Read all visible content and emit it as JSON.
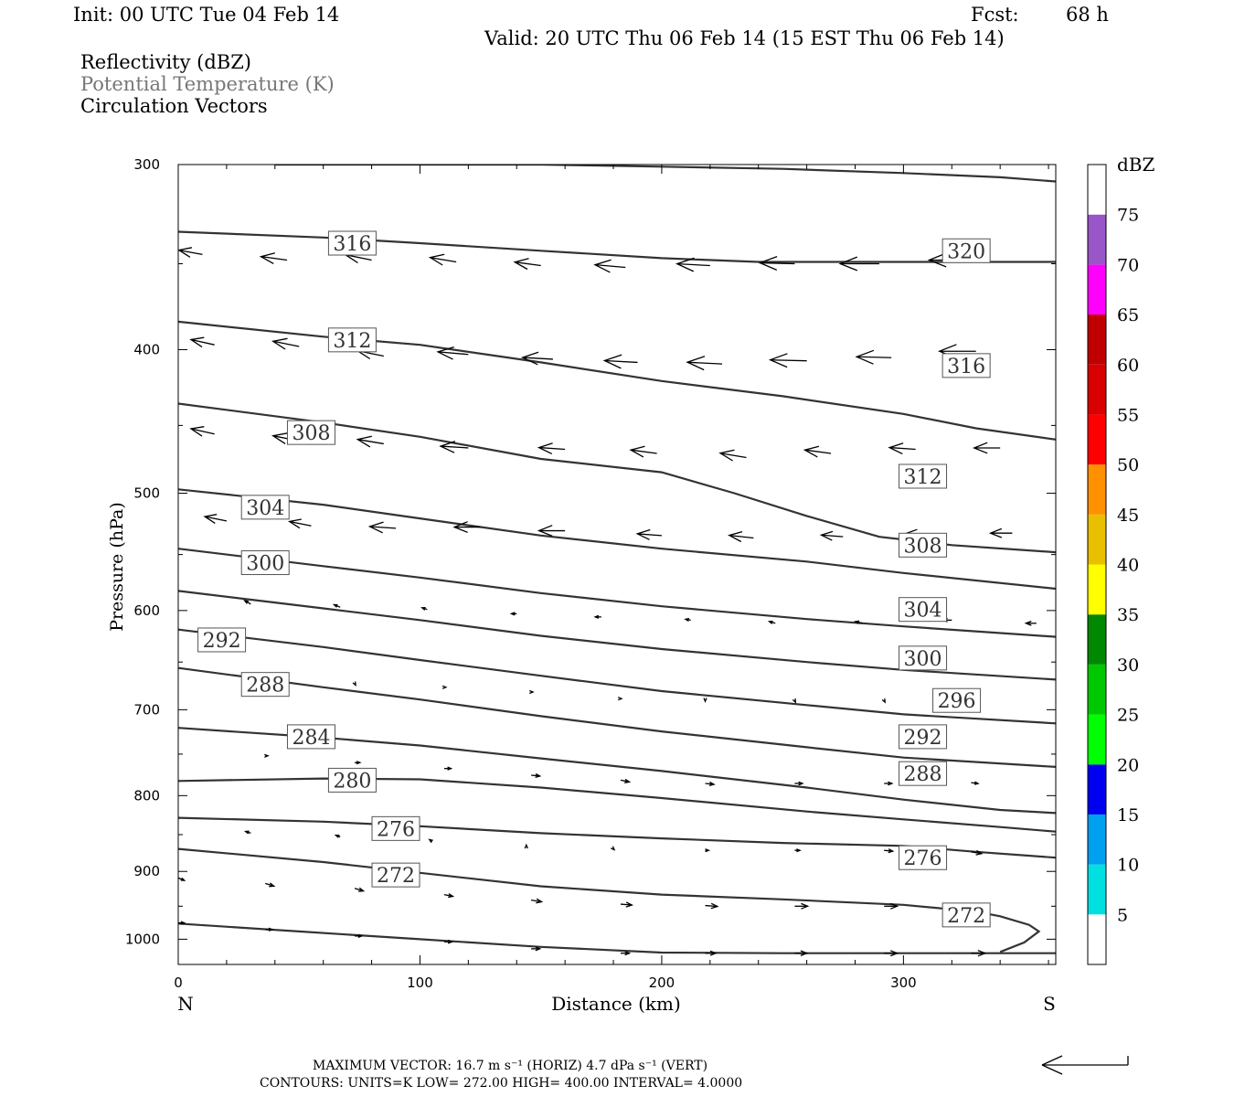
{
  "header": {
    "init": "Init: 00 UTC Tue 04 Feb 14",
    "fcst_label": "Fcst:",
    "fcst_value": "68 h",
    "valid": "Valid: 20 UTC Thu 06 Feb 14 (15 EST Thu 06 Feb 14)"
  },
  "fields": {
    "reflectivity": "Reflectivity (dBZ)",
    "theta": "Potential Temperature (K)",
    "vectors": "Circulation Vectors"
  },
  "footer": {
    "max_vector_line": "MAXIMUM VECTOR:  16.7 m s⁻¹ (HORIZ)          4.7 dPa s⁻¹ (VERT)",
    "contours_line": "CONTOURS:  UNITS=K  LOW=  272.00        HIGH=  400.00        INTERVAL=    4.0000"
  },
  "colors": {
    "contour": "#333333",
    "vector": "#000000"
  },
  "chart_data": {
    "type": "line",
    "xlabel": "Distance (km)",
    "ylabel": "Pressure (hPa)",
    "xlim": [
      0,
      363
    ],
    "ylim": [
      1040,
      300
    ],
    "y_scale": "log",
    "x_ticks": [
      0,
      100,
      200,
      300
    ],
    "y_ticks": [
      300,
      400,
      500,
      600,
      700,
      800,
      900,
      1000
    ],
    "x_end_labels": {
      "left": "N",
      "right": "S"
    },
    "series": [
      {
        "name": "320",
        "x": [
          40,
          100,
          150,
          200,
          250,
          300,
          340,
          363
        ],
        "y": [
          300,
          300,
          300,
          301,
          302,
          304,
          306,
          308
        ]
      },
      {
        "name": "316",
        "x": [
          0,
          60,
          100,
          150,
          200,
          240,
          280,
          320,
          363
        ],
        "y": [
          333,
          336,
          339,
          343,
          347,
          349,
          349,
          349,
          349
        ]
      },
      {
        "name": "312",
        "x": [
          0,
          60,
          100,
          150,
          200,
          250,
          300,
          330,
          363
        ],
        "y": [
          383,
          392,
          397,
          408,
          420,
          430,
          442,
          452,
          460
        ]
      },
      {
        "name": "308",
        "x": [
          0,
          60,
          100,
          150,
          200,
          230,
          260,
          290,
          320,
          363
        ],
        "y": [
          435,
          448,
          458,
          474,
          484,
          500,
          518,
          535,
          542,
          548
        ]
      },
      {
        "name": "304",
        "x": [
          0,
          60,
          100,
          150,
          200,
          260,
          300,
          363
        ],
        "y": [
          497,
          509,
          520,
          534,
          545,
          556,
          566,
          580
        ]
      },
      {
        "name": "300",
        "x": [
          0,
          60,
          100,
          150,
          200,
          260,
          300,
          363
        ],
        "y": [
          545,
          560,
          570,
          584,
          596,
          608,
          615,
          625
        ]
      },
      {
        "name": "296",
        "x": [
          0,
          60,
          100,
          150,
          200,
          260,
          300,
          363
        ],
        "y": [
          582,
          598,
          609,
          624,
          637,
          650,
          658,
          668
        ]
      },
      {
        "name": "292",
        "x": [
          0,
          60,
          100,
          150,
          200,
          260,
          300,
          363
        ],
        "y": [
          618,
          635,
          648,
          664,
          680,
          695,
          705,
          715
        ]
      },
      {
        "name": "288",
        "x": [
          0,
          60,
          100,
          150,
          200,
          260,
          300,
          363
        ],
        "y": [
          656,
          676,
          689,
          707,
          724,
          742,
          754,
          765
        ]
      },
      {
        "name": "284",
        "x": [
          0,
          60,
          100,
          150,
          200,
          260,
          300,
          340,
          363
        ],
        "y": [
          720,
          731,
          740,
          755,
          770,
          790,
          805,
          818,
          822
        ]
      },
      {
        "name": "280",
        "x": [
          0,
          60,
          100,
          150,
          200,
          260,
          300,
          340,
          363
        ],
        "y": [
          782,
          779,
          780,
          790,
          803,
          820,
          830,
          840,
          846
        ]
      },
      {
        "name": "276",
        "x": [
          0,
          60,
          100,
          150,
          200,
          250,
          300,
          330,
          363
        ],
        "y": [
          828,
          833,
          839,
          848,
          855,
          861,
          865,
          873,
          881
        ]
      },
      {
        "name": "272",
        "x": [
          0,
          60,
          100,
          150,
          200,
          250,
          300,
          330,
          340,
          352,
          356,
          350,
          340
        ],
        "y": [
          869,
          887,
          902,
          921,
          933,
          940,
          948,
          958,
          965,
          978,
          988,
          1005,
          1020
        ]
      },
      {
        "name": "",
        "x": [
          0,
          50,
          100,
          150,
          200,
          250,
          300,
          363
        ],
        "y": [
          976,
          988,
          1000,
          1012,
          1021,
          1022,
          1022,
          1022
        ]
      }
    ],
    "contour_labels": [
      {
        "text": "316",
        "x": 72,
        "y": 339
      },
      {
        "text": "320",
        "x": 326,
        "y": 343
      },
      {
        "text": "312",
        "x": 72,
        "y": 394
      },
      {
        "text": "316",
        "x": 326,
        "y": 410
      },
      {
        "text": "308",
        "x": 55,
        "y": 455
      },
      {
        "text": "312",
        "x": 308,
        "y": 487
      },
      {
        "text": "304",
        "x": 36,
        "y": 511
      },
      {
        "text": "308",
        "x": 308,
        "y": 542
      },
      {
        "text": "300",
        "x": 36,
        "y": 557
      },
      {
        "text": "304",
        "x": 308,
        "y": 599
      },
      {
        "text": "292",
        "x": 18,
        "y": 628
      },
      {
        "text": "300",
        "x": 308,
        "y": 646
      },
      {
        "text": "288",
        "x": 36,
        "y": 673
      },
      {
        "text": "296",
        "x": 322,
        "y": 690
      },
      {
        "text": "284",
        "x": 55,
        "y": 730
      },
      {
        "text": "292",
        "x": 308,
        "y": 730
      },
      {
        "text": "280",
        "x": 72,
        "y": 781
      },
      {
        "text": "288",
        "x": 308,
        "y": 773
      },
      {
        "text": "276",
        "x": 90,
        "y": 842
      },
      {
        "text": "276",
        "x": 308,
        "y": 881
      },
      {
        "text": "272",
        "x": 90,
        "y": 905
      },
      {
        "text": "272",
        "x": 326,
        "y": 963
      }
    ],
    "vectors": [
      {
        "x": 10,
        "y": 345,
        "dx": -0.27,
        "dy": -0.05
      },
      {
        "x": 45,
        "y": 348,
        "dx": -0.3,
        "dy": -0.04
      },
      {
        "x": 80,
        "y": 348,
        "dx": -0.3,
        "dy": -0.06
      },
      {
        "x": 115,
        "y": 349,
        "dx": -0.3,
        "dy": -0.05
      },
      {
        "x": 150,
        "y": 351,
        "dx": -0.3,
        "dy": -0.04
      },
      {
        "x": 185,
        "y": 352,
        "dx": -0.35,
        "dy": -0.03
      },
      {
        "x": 220,
        "y": 351,
        "dx": -0.38,
        "dy": -0.02
      },
      {
        "x": 255,
        "y": 350,
        "dx": -0.4,
        "dy": -0.01
      },
      {
        "x": 290,
        "y": 350,
        "dx": -0.45,
        "dy": 0
      },
      {
        "x": 325,
        "y": 348,
        "dx": -0.4,
        "dy": 0
      },
      {
        "x": 15,
        "y": 397,
        "dx": -0.27,
        "dy": -0.06
      },
      {
        "x": 50,
        "y": 398,
        "dx": -0.3,
        "dy": -0.06
      },
      {
        "x": 85,
        "y": 404,
        "dx": -0.3,
        "dy": -0.06
      },
      {
        "x": 120,
        "y": 403,
        "dx": -0.35,
        "dy": -0.03
      },
      {
        "x": 155,
        "y": 406,
        "dx": -0.35,
        "dy": -0.02
      },
      {
        "x": 190,
        "y": 408,
        "dx": -0.38,
        "dy": -0.02
      },
      {
        "x": 225,
        "y": 409,
        "dx": -0.4,
        "dy": -0.02
      },
      {
        "x": 260,
        "y": 407,
        "dx": -0.42,
        "dy": -0.01
      },
      {
        "x": 295,
        "y": 405,
        "dx": -0.4,
        "dy": -0.01
      },
      {
        "x": 330,
        "y": 401,
        "dx": -0.42,
        "dy": 0
      },
      {
        "x": 15,
        "y": 456,
        "dx": -0.27,
        "dy": -0.06
      },
      {
        "x": 50,
        "y": 461,
        "dx": -0.3,
        "dy": -0.06
      },
      {
        "x": 85,
        "y": 463,
        "dx": -0.3,
        "dy": -0.05
      },
      {
        "x": 120,
        "y": 466,
        "dx": -0.32,
        "dy": -0.02
      },
      {
        "x": 160,
        "y": 467,
        "dx": -0.3,
        "dy": -0.02
      },
      {
        "x": 198,
        "y": 470,
        "dx": -0.3,
        "dy": -0.04
      },
      {
        "x": 235,
        "y": 473,
        "dx": -0.3,
        "dy": -0.05
      },
      {
        "x": 270,
        "y": 470,
        "dx": -0.3,
        "dy": -0.04
      },
      {
        "x": 305,
        "y": 467,
        "dx": -0.3,
        "dy": -0.02
      },
      {
        "x": 340,
        "y": 466,
        "dx": -0.3,
        "dy": 0
      },
      {
        "x": 20,
        "y": 522,
        "dx": -0.25,
        "dy": -0.05
      },
      {
        "x": 55,
        "y": 526,
        "dx": -0.25,
        "dy": -0.05
      },
      {
        "x": 90,
        "y": 528,
        "dx": -0.3,
        "dy": -0.02
      },
      {
        "x": 125,
        "y": 527,
        "dx": -0.3,
        "dy": 0
      },
      {
        "x": 160,
        "y": 530,
        "dx": -0.3,
        "dy": 0
      },
      {
        "x": 200,
        "y": 534,
        "dx": -0.28,
        "dy": -0.02
      },
      {
        "x": 238,
        "y": 536,
        "dx": -0.28,
        "dy": -0.03
      },
      {
        "x": 275,
        "y": 535,
        "dx": -0.25,
        "dy": -0.02
      },
      {
        "x": 310,
        "y": 533,
        "dx": -0.25,
        "dy": -0.01
      },
      {
        "x": 345,
        "y": 532,
        "dx": -0.25,
        "dy": 0
      },
      {
        "x": 30,
        "y": 594,
        "dx": -0.07,
        "dy": -0.04
      },
      {
        "x": 67,
        "y": 597,
        "dx": -0.07,
        "dy": -0.03
      },
      {
        "x": 103,
        "y": 599,
        "dx": -0.06,
        "dy": -0.02
      },
      {
        "x": 140,
        "y": 603,
        "dx": -0.06,
        "dy": 0
      },
      {
        "x": 175,
        "y": 606,
        "dx": -0.07,
        "dy": 0
      },
      {
        "x": 212,
        "y": 609,
        "dx": -0.06,
        "dy": -0.01
      },
      {
        "x": 247,
        "y": 612,
        "dx": -0.07,
        "dy": -0.02
      },
      {
        "x": 283,
        "y": 612,
        "dx": -0.08,
        "dy": -0.02
      },
      {
        "x": 320,
        "y": 609,
        "dx": -0.1,
        "dy": 0
      },
      {
        "x": 355,
        "y": 612,
        "dx": -0.12,
        "dy": 0
      },
      {
        "x": 36,
        "y": 667,
        "dx": 0,
        "dy": 0.03
      },
      {
        "x": 73,
        "y": 672,
        "dx": 0.01,
        "dy": 0.02
      },
      {
        "x": 110,
        "y": 676,
        "dx": 0.02,
        "dy": 0
      },
      {
        "x": 146,
        "y": 681,
        "dx": 0.02,
        "dy": 0
      },
      {
        "x": 183,
        "y": 688,
        "dx": 0.01,
        "dy": 0
      },
      {
        "x": 218,
        "y": 690,
        "dx": 0,
        "dy": 0.01
      },
      {
        "x": 255,
        "y": 690,
        "dx": 0.01,
        "dy": 0.02
      },
      {
        "x": 292,
        "y": 690,
        "dx": 0.01,
        "dy": 0.02
      },
      {
        "x": 36,
        "y": 752,
        "dx": 0.03,
        "dy": 0
      },
      {
        "x": 73,
        "y": 760,
        "dx": 0.06,
        "dy": 0
      },
      {
        "x": 110,
        "y": 767,
        "dx": 0.08,
        "dy": 0
      },
      {
        "x": 146,
        "y": 775,
        "dx": 0.1,
        "dy": 0.01
      },
      {
        "x": 183,
        "y": 781,
        "dx": 0.1,
        "dy": 0.02
      },
      {
        "x": 218,
        "y": 785,
        "dx": 0.1,
        "dy": 0.01
      },
      {
        "x": 255,
        "y": 785,
        "dx": 0.09,
        "dy": 0
      },
      {
        "x": 292,
        "y": 785,
        "dx": 0.09,
        "dy": 0
      },
      {
        "x": 328,
        "y": 784,
        "dx": 0.08,
        "dy": 0.01
      },
      {
        "x": 30,
        "y": 848,
        "dx": -0.06,
        "dy": -0.02
      },
      {
        "x": 67,
        "y": 853,
        "dx": -0.05,
        "dy": -0.02
      },
      {
        "x": 105,
        "y": 859,
        "dx": -0.03,
        "dy": -0.02
      },
      {
        "x": 144,
        "y": 865,
        "dx": 0,
        "dy": -0.01
      },
      {
        "x": 180,
        "y": 869,
        "dx": 0.01,
        "dy": 0.01
      },
      {
        "x": 218,
        "y": 871,
        "dx": 0.04,
        "dy": 0
      },
      {
        "x": 255,
        "y": 871,
        "dx": 0.06,
        "dy": 0
      },
      {
        "x": 292,
        "y": 871,
        "dx": 0.1,
        "dy": 0.01
      },
      {
        "x": 328,
        "y": 873,
        "dx": 0.12,
        "dy": 0.02
      },
      {
        "x": 0,
        "y": 909,
        "dx": 0.07,
        "dy": 0.03
      },
      {
        "x": 36,
        "y": 917,
        "dx": 0.1,
        "dy": 0.03
      },
      {
        "x": 73,
        "y": 924,
        "dx": 0.1,
        "dy": 0.03
      },
      {
        "x": 110,
        "y": 933,
        "dx": 0.1,
        "dy": 0.02
      },
      {
        "x": 146,
        "y": 941,
        "dx": 0.12,
        "dy": 0.02
      },
      {
        "x": 183,
        "y": 947,
        "dx": 0.13,
        "dy": 0.01
      },
      {
        "x": 218,
        "y": 949,
        "dx": 0.14,
        "dy": 0.01
      },
      {
        "x": 255,
        "y": 950,
        "dx": 0.15,
        "dy": 0
      },
      {
        "x": 292,
        "y": 950,
        "dx": 0.15,
        "dy": 0
      },
      {
        "x": 328,
        "y": 952,
        "dx": 0.15,
        "dy": 0
      },
      {
        "x": 0,
        "y": 975,
        "dx": 0.07,
        "dy": 0
      },
      {
        "x": 36,
        "y": 985,
        "dx": 0.08,
        "dy": 0
      },
      {
        "x": 73,
        "y": 995,
        "dx": 0.08,
        "dy": 0
      },
      {
        "x": 110,
        "y": 1004,
        "dx": 0.09,
        "dy": 0
      },
      {
        "x": 146,
        "y": 1015,
        "dx": 0.1,
        "dy": 0
      },
      {
        "x": 183,
        "y": 1022,
        "dx": 0.1,
        "dy": 0
      },
      {
        "x": 218,
        "y": 1022,
        "dx": 0.12,
        "dy": 0
      },
      {
        "x": 255,
        "y": 1022,
        "dx": 0.14,
        "dy": 0
      },
      {
        "x": 292,
        "y": 1022,
        "dx": 0.15,
        "dy": 0
      },
      {
        "x": 328,
        "y": 1022,
        "dx": 0.16,
        "dy": 0
      }
    ],
    "colorbar": {
      "title": "dBZ",
      "labels": [
        "5",
        "10",
        "15",
        "20",
        "25",
        "30",
        "35",
        "40",
        "45",
        "50",
        "55",
        "60",
        "65",
        "70",
        "75"
      ],
      "colors": [
        "#00e0e0",
        "#00a0f0",
        "#0000f0",
        "#00ff00",
        "#00c800",
        "#008800",
        "#ffff00",
        "#e8c000",
        "#ff9000",
        "#ff0000",
        "#d80000",
        "#c00000",
        "#ff00ff",
        "#9956c8"
      ]
    }
  }
}
